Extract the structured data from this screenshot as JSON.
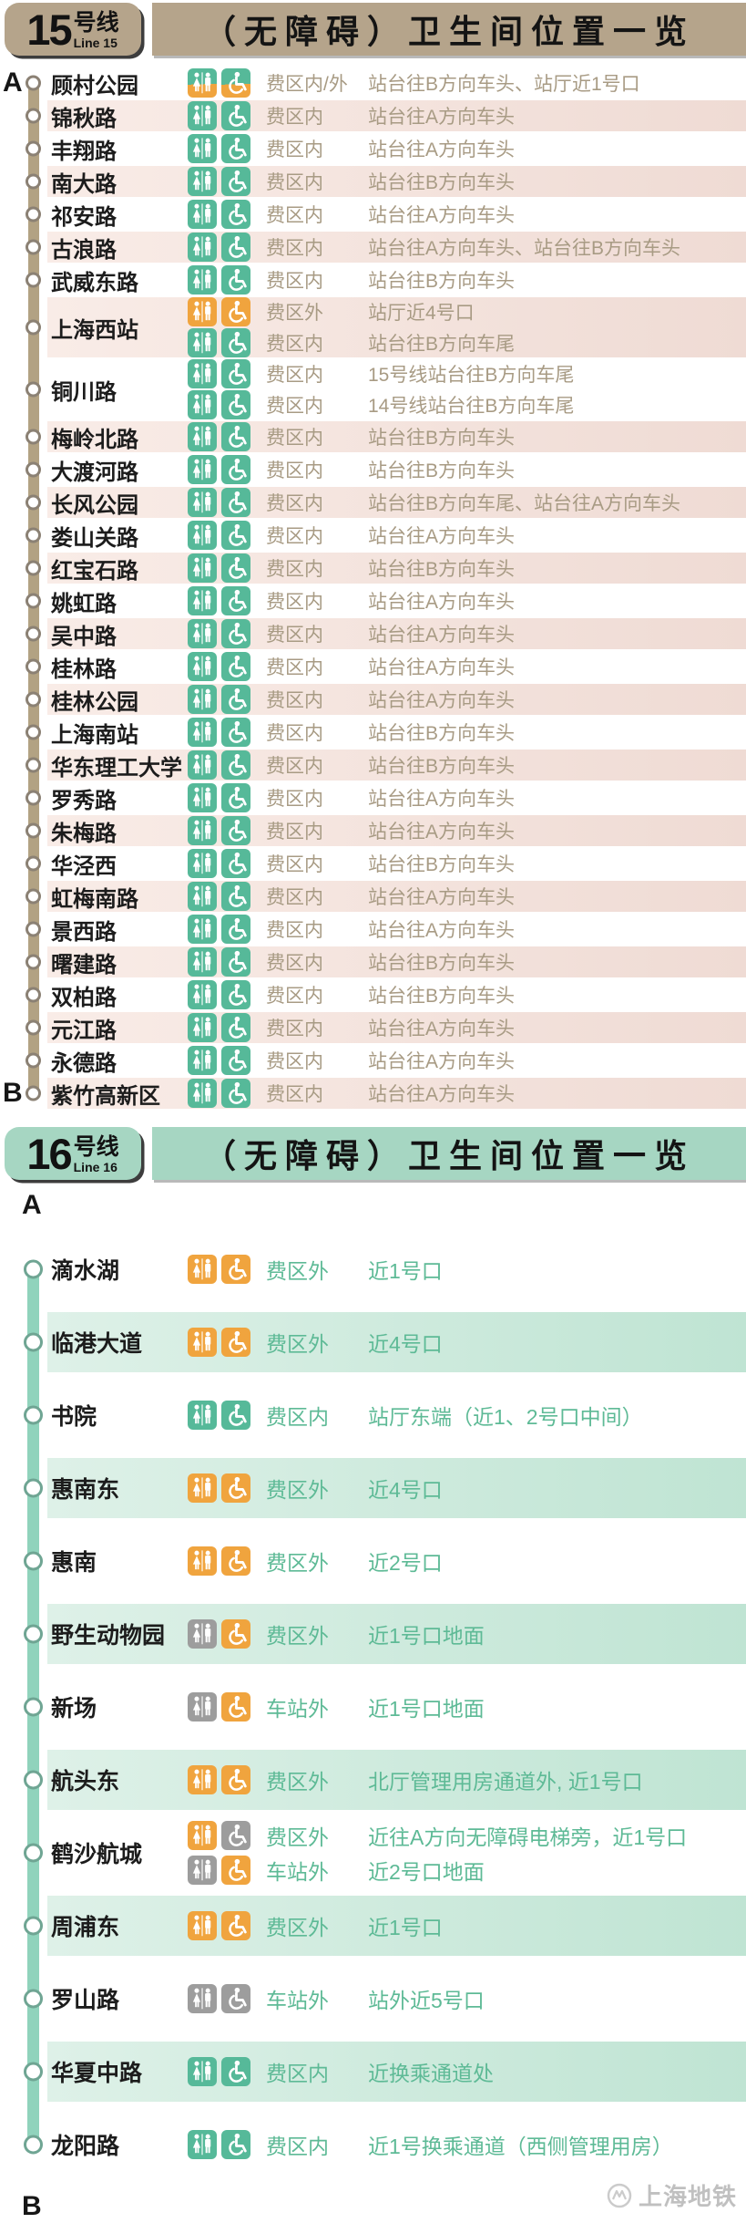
{
  "watermark": {
    "text": "上海地铁",
    "logo": "shanghai-metro-logo"
  },
  "icon_colors": {
    "green": "#56b999",
    "orange": "#f0a43e",
    "gray": "#9d9d9d"
  },
  "icons": {
    "toilet": "toilet-icon",
    "wheelchair": "wheelchair-icon"
  },
  "sections": [
    {
      "id": "line15",
      "badge": {
        "num": "15",
        "cn": "号线",
        "en": "Line 15"
      },
      "banner_title": "（无障碍）卫生间位置一览",
      "start_label": "A",
      "end_label": "B",
      "theme": {
        "accent": "#b5a48b",
        "band_from": "#f9ece7",
        "band_to": "#efdbd4",
        "line": "#b2a283",
        "ring": "#8b8174",
        "muted": "#a89b84"
      },
      "stations": [
        {
          "name": "顾村公园",
          "marker": "A",
          "shaded": false,
          "entries": [
            {
              "toilet": "split",
              "wheelchair": "split",
              "fee": "费区内/外",
              "location": "站台往B方向车头、站厅近1号口"
            }
          ]
        },
        {
          "name": "锦秋路",
          "shaded": true,
          "entries": [
            {
              "toilet": "green",
              "wheelchair": "green",
              "fee": "费区内",
              "location": "站台往A方向车头"
            }
          ]
        },
        {
          "name": "丰翔路",
          "shaded": false,
          "entries": [
            {
              "toilet": "green",
              "wheelchair": "green",
              "fee": "费区内",
              "location": "站台往A方向车头"
            }
          ]
        },
        {
          "name": "南大路",
          "shaded": true,
          "entries": [
            {
              "toilet": "green",
              "wheelchair": "green",
              "fee": "费区内",
              "location": "站台往B方向车头"
            }
          ]
        },
        {
          "name": "祁安路",
          "shaded": false,
          "entries": [
            {
              "toilet": "green",
              "wheelchair": "green",
              "fee": "费区内",
              "location": "站台往A方向车头"
            }
          ]
        },
        {
          "name": "古浪路",
          "shaded": true,
          "entries": [
            {
              "toilet": "green",
              "wheelchair": "green",
              "fee": "费区内",
              "location": "站台往A方向车头、站台往B方向车头"
            }
          ]
        },
        {
          "name": "武威东路",
          "shaded": false,
          "entries": [
            {
              "toilet": "green",
              "wheelchair": "green",
              "fee": "费区内",
              "location": "站台往B方向车头"
            }
          ]
        },
        {
          "name": "上海西站",
          "shaded": true,
          "entries": [
            {
              "toilet": "orange",
              "wheelchair": "orange",
              "fee": "费区外",
              "location": "站厅近4号口"
            },
            {
              "toilet": "green",
              "wheelchair": "green",
              "fee": "费区内",
              "location": "站台往B方向车尾"
            }
          ]
        },
        {
          "name": "铜川路",
          "shaded": false,
          "entries": [
            {
              "toilet": "green",
              "wheelchair": "green",
              "fee": "费区内",
              "location": "15号线站台往B方向车尾"
            },
            {
              "toilet": "green",
              "wheelchair": "green",
              "fee": "费区内",
              "location": "14号线站台往B方向车尾"
            }
          ]
        },
        {
          "name": "梅岭北路",
          "shaded": true,
          "entries": [
            {
              "toilet": "green",
              "wheelchair": "green",
              "fee": "费区内",
              "location": "站台往B方向车头"
            }
          ]
        },
        {
          "name": "大渡河路",
          "shaded": false,
          "entries": [
            {
              "toilet": "green",
              "wheelchair": "green",
              "fee": "费区内",
              "location": "站台往B方向车头"
            }
          ]
        },
        {
          "name": "长风公园",
          "shaded": true,
          "entries": [
            {
              "toilet": "green",
              "wheelchair": "green",
              "fee": "费区内",
              "location": "站台往B方向车尾、站台往A方向车头"
            }
          ]
        },
        {
          "name": "娄山关路",
          "shaded": false,
          "entries": [
            {
              "toilet": "green",
              "wheelchair": "green",
              "fee": "费区内",
              "location": "站台往A方向车头"
            }
          ]
        },
        {
          "name": "红宝石路",
          "shaded": true,
          "entries": [
            {
              "toilet": "green",
              "wheelchair": "green",
              "fee": "费区内",
              "location": "站台往B方向车头"
            }
          ]
        },
        {
          "name": "姚虹路",
          "shaded": false,
          "entries": [
            {
              "toilet": "green",
              "wheelchair": "green",
              "fee": "费区内",
              "location": "站台往A方向车头"
            }
          ]
        },
        {
          "name": "吴中路",
          "shaded": true,
          "entries": [
            {
              "toilet": "green",
              "wheelchair": "green",
              "fee": "费区内",
              "location": "站台往A方向车头"
            }
          ]
        },
        {
          "name": "桂林路",
          "shaded": false,
          "entries": [
            {
              "toilet": "green",
              "wheelchair": "green",
              "fee": "费区内",
              "location": "站台往A方向车头"
            }
          ]
        },
        {
          "name": "桂林公园",
          "shaded": true,
          "entries": [
            {
              "toilet": "green",
              "wheelchair": "green",
              "fee": "费区内",
              "location": "站台往A方向车头"
            }
          ]
        },
        {
          "name": "上海南站",
          "shaded": false,
          "entries": [
            {
              "toilet": "green",
              "wheelchair": "green",
              "fee": "费区内",
              "location": "站台往B方向车头"
            }
          ]
        },
        {
          "name": "华东理工大学",
          "shaded": true,
          "entries": [
            {
              "toilet": "green",
              "wheelchair": "green",
              "fee": "费区内",
              "location": "站台往B方向车头"
            }
          ]
        },
        {
          "name": "罗秀路",
          "shaded": false,
          "entries": [
            {
              "toilet": "green",
              "wheelchair": "green",
              "fee": "费区内",
              "location": "站台往A方向车头"
            }
          ]
        },
        {
          "name": "朱梅路",
          "shaded": true,
          "entries": [
            {
              "toilet": "green",
              "wheelchair": "green",
              "fee": "费区内",
              "location": "站台往A方向车头"
            }
          ]
        },
        {
          "name": "华泾西",
          "shaded": false,
          "entries": [
            {
              "toilet": "green",
              "wheelchair": "green",
              "fee": "费区内",
              "location": "站台往B方向车头"
            }
          ]
        },
        {
          "name": "虹梅南路",
          "shaded": true,
          "entries": [
            {
              "toilet": "green",
              "wheelchair": "green",
              "fee": "费区内",
              "location": "站台往A方向车头"
            }
          ]
        },
        {
          "name": "景西路",
          "shaded": false,
          "entries": [
            {
              "toilet": "green",
              "wheelchair": "green",
              "fee": "费区内",
              "location": "站台往A方向车头"
            }
          ]
        },
        {
          "name": "曙建路",
          "shaded": true,
          "entries": [
            {
              "toilet": "green",
              "wheelchair": "green",
              "fee": "费区内",
              "location": "站台往B方向车头"
            }
          ]
        },
        {
          "name": "双柏路",
          "shaded": false,
          "entries": [
            {
              "toilet": "green",
              "wheelchair": "green",
              "fee": "费区内",
              "location": "站台往B方向车头"
            }
          ]
        },
        {
          "name": "元江路",
          "shaded": true,
          "entries": [
            {
              "toilet": "green",
              "wheelchair": "green",
              "fee": "费区内",
              "location": "站台往A方向车头"
            }
          ]
        },
        {
          "name": "永德路",
          "shaded": false,
          "entries": [
            {
              "toilet": "green",
              "wheelchair": "green",
              "fee": "费区内",
              "location": "站台往A方向车头"
            }
          ]
        },
        {
          "name": "紫竹高新区",
          "marker": "B",
          "shaded": true,
          "entries": [
            {
              "toilet": "green",
              "wheelchair": "green",
              "fee": "费区内",
              "location": "站台往A方向车头"
            }
          ]
        }
      ]
    },
    {
      "id": "line16",
      "badge": {
        "num": "16",
        "cn": "号线",
        "en": "Line 16"
      },
      "banner_title": "（无障碍）卫生间位置一览",
      "start_label": "A",
      "end_label": "B",
      "theme": {
        "accent": "#a6d6c2",
        "band_from": "#def1e8",
        "band_to": "#bfe4d3",
        "line": "#90d3bc",
        "ring": "#6fa593",
        "muted": "#5eba96"
      },
      "stations": [
        {
          "name": "滴水湖",
          "shaded": false,
          "entries": [
            {
              "toilet": "orange",
              "wheelchair": "orange",
              "fee": "费区外",
              "location": "近1号口"
            }
          ]
        },
        {
          "name": "临港大道",
          "shaded": true,
          "entries": [
            {
              "toilet": "orange",
              "wheelchair": "orange",
              "fee": "费区外",
              "location": "近4号口"
            }
          ]
        },
        {
          "name": "书院",
          "shaded": false,
          "entries": [
            {
              "toilet": "green",
              "wheelchair": "green",
              "fee": "费区内",
              "location": "站厅东端（近1、2号口中间）"
            }
          ]
        },
        {
          "name": "惠南东",
          "shaded": true,
          "entries": [
            {
              "toilet": "orange",
              "wheelchair": "orange",
              "fee": "费区外",
              "location": "近4号口"
            }
          ]
        },
        {
          "name": "惠南",
          "shaded": false,
          "entries": [
            {
              "toilet": "orange",
              "wheelchair": "orange",
              "fee": "费区外",
              "location": "近2号口"
            }
          ]
        },
        {
          "name": "野生动物园",
          "shaded": true,
          "entries": [
            {
              "toilet": "gray",
              "wheelchair": "orange",
              "fee": "费区外",
              "location": "近1号口地面"
            }
          ]
        },
        {
          "name": "新场",
          "shaded": false,
          "entries": [
            {
              "toilet": "gray",
              "wheelchair": "orange",
              "fee": "车站外",
              "location": "近1号口地面"
            }
          ]
        },
        {
          "name": "航头东",
          "shaded": true,
          "entries": [
            {
              "toilet": "orange",
              "wheelchair": "orange",
              "fee": "费区外",
              "location": "北厅管理用房通道外, 近1号口"
            }
          ]
        },
        {
          "name": "鹤沙航城",
          "shaded": false,
          "entries": [
            {
              "toilet": "orange",
              "wheelchair": "gray",
              "fee": "费区外",
              "location": "近往A方向无障碍电梯旁，近1号口"
            },
            {
              "toilet": "gray",
              "wheelchair": "orange",
              "fee": "车站外",
              "location": "近2号口地面"
            }
          ]
        },
        {
          "name": "周浦东",
          "shaded": true,
          "entries": [
            {
              "toilet": "orange",
              "wheelchair": "orange",
              "fee": "费区外",
              "location": "近1号口"
            }
          ]
        },
        {
          "name": "罗山路",
          "shaded": false,
          "entries": [
            {
              "toilet": "gray",
              "wheelchair": "gray",
              "fee": "车站外",
              "location": "站外近5号口"
            }
          ]
        },
        {
          "name": "华夏中路",
          "shaded": true,
          "entries": [
            {
              "toilet": "green",
              "wheelchair": "green",
              "fee": "费区内",
              "location": "近换乘通道处"
            }
          ]
        },
        {
          "name": "龙阳路",
          "shaded": false,
          "entries": [
            {
              "toilet": "green",
              "wheelchair": "green",
              "fee": "费区内",
              "location": "近1号换乘通道（西侧管理用房）"
            }
          ]
        }
      ]
    }
  ]
}
